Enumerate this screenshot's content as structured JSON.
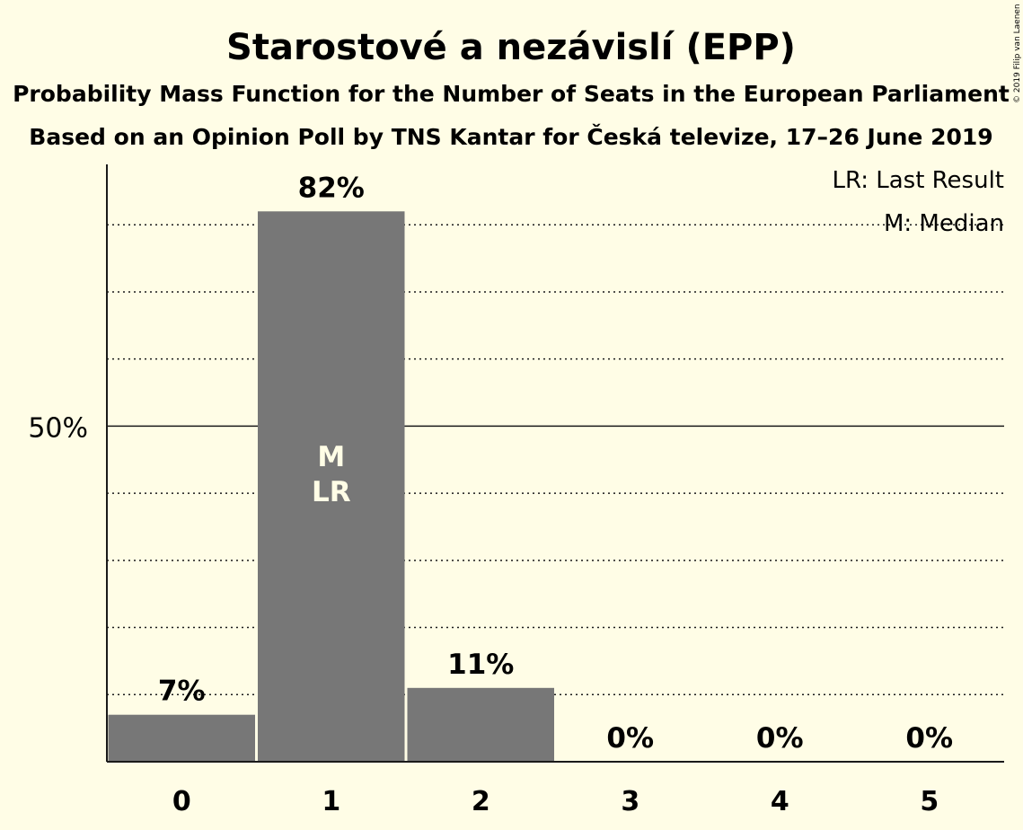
{
  "chart_data": {
    "type": "bar",
    "title": "Starostové a nezávislí (EPP)",
    "subtitle_1": "Probability Mass Function for the Number of Seats in the European Parliament",
    "subtitle_2": "Based on an Opinion Poll by TNS Kantar for Česká televize, 17–26 June 2019",
    "categories": [
      "0",
      "1",
      "2",
      "3",
      "4",
      "5"
    ],
    "values": [
      7,
      82,
      11,
      0,
      0,
      0
    ],
    "labels": [
      "7%",
      "82%",
      "11%",
      "0%",
      "0%",
      "0%"
    ],
    "ylim": [
      0,
      89
    ],
    "y_ticks": [
      {
        "value": 50,
        "label": "50%"
      }
    ],
    "grid": true,
    "legend": {
      "placement": "top-right",
      "items": [
        "LR: Last Result",
        "M: Median"
      ]
    },
    "markers": [
      {
        "category": "1",
        "lines": [
          "M",
          "LR"
        ]
      }
    ],
    "colors": {
      "bar": "#777777",
      "background": "#fffde6",
      "axis": "#1a1a1a"
    }
  },
  "copyright": "© 2019 Filip van Laenen"
}
